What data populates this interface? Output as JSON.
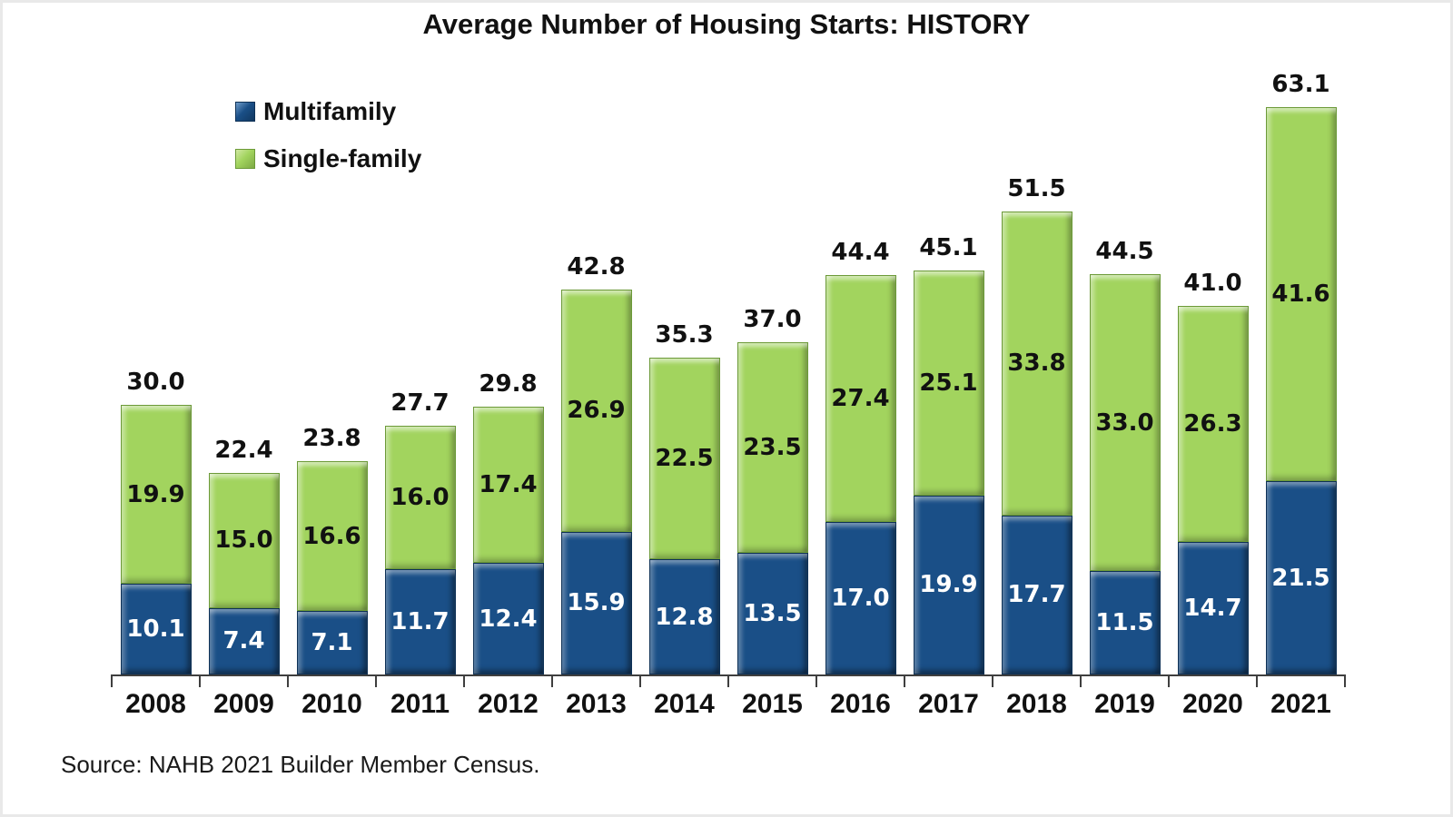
{
  "title": "Average Number of Housing Starts: HISTORY",
  "source": "Source: NAHB 2021 Builder Member Census.",
  "legend": {
    "items": [
      {
        "label": "Multifamily",
        "color": "#1a4f87"
      },
      {
        "label": "Single-family",
        "color": "#a2d45e"
      }
    ],
    "position": "top-left"
  },
  "colors": {
    "multifamily": "#1a4f87",
    "single_family": "#a2d45e",
    "axis": "#3f3f3f",
    "background": "#ffffff",
    "label_on_blue": "#ffffff",
    "label_on_green": "#111111"
  },
  "chart_data": {
    "type": "bar",
    "stacked": true,
    "title": "Average Number of Housing Starts: HISTORY",
    "xlabel": "",
    "ylabel": "",
    "ylim": [
      0,
      65
    ],
    "grid": false,
    "legend_position": "top-left",
    "value_labels": true,
    "categories": [
      "2008",
      "2009",
      "2010",
      "2011",
      "2012",
      "2013",
      "2014",
      "2015",
      "2016",
      "2017",
      "2018",
      "2019",
      "2020",
      "2021"
    ],
    "series": [
      {
        "name": "Multifamily",
        "color": "#1a4f87",
        "values": [
          10.1,
          7.4,
          7.1,
          11.7,
          12.4,
          15.9,
          12.8,
          13.5,
          17.0,
          19.9,
          17.7,
          11.5,
          14.7,
          21.5
        ]
      },
      {
        "name": "Single-family",
        "color": "#a2d45e",
        "values": [
          19.9,
          15.0,
          16.6,
          16.0,
          17.4,
          26.9,
          22.5,
          23.5,
          27.4,
          25.1,
          33.8,
          33.0,
          26.3,
          41.6
        ]
      }
    ],
    "totals": [
      30.0,
      22.4,
      23.8,
      27.7,
      29.8,
      42.8,
      35.3,
      37.0,
      44.4,
      45.1,
      51.5,
      44.5,
      41.0,
      63.1
    ]
  }
}
